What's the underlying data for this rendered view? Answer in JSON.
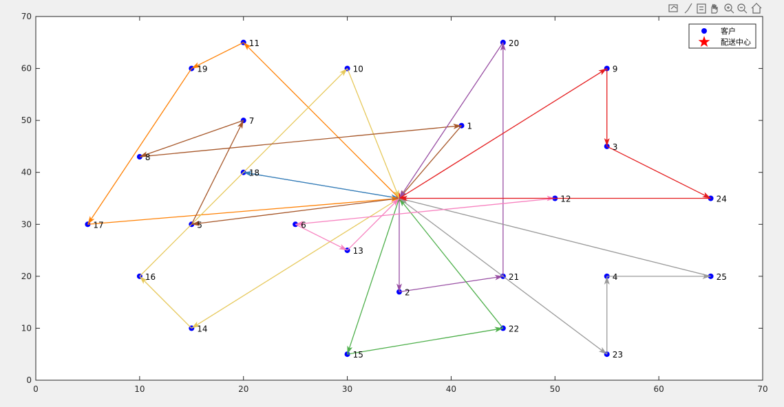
{
  "chart_data": {
    "type": "scatter",
    "series": [
      {
        "name": "客户",
        "color": "#0000ff",
        "marker": "circle",
        "labels": [
          1,
          2,
          3,
          4,
          5,
          6,
          7,
          8,
          9,
          10,
          11,
          12,
          13,
          14,
          15,
          16,
          17,
          18,
          19,
          20,
          21,
          22,
          23,
          24,
          25
        ],
        "x": [
          41,
          35,
          55,
          55,
          15,
          25,
          20,
          10,
          55,
          30,
          20,
          50,
          30,
          15,
          30,
          10,
          5,
          20,
          15,
          45,
          45,
          45,
          55,
          65,
          65
        ],
        "y": [
          49,
          17,
          45,
          20,
          30,
          30,
          50,
          43,
          60,
          60,
          65,
          35,
          25,
          10,
          5,
          20,
          30,
          40,
          60,
          65,
          20,
          10,
          5,
          35,
          20
        ]
      },
      {
        "name": "配送中心",
        "color": "#ff0000",
        "marker": "star",
        "x": [
          35
        ],
        "y": [
          35
        ]
      }
    ],
    "routes": [
      {
        "color": "#377eb8",
        "stops": [
          18
        ]
      },
      {
        "color": "#ff7f00",
        "stops": [
          11,
          19,
          17
        ]
      },
      {
        "color": "#e6c85a",
        "stops": [
          14,
          16,
          10
        ]
      },
      {
        "color": "#a65628",
        "stops": [
          5,
          7,
          8,
          1
        ]
      },
      {
        "color": "#984ea3",
        "stops": [
          2,
          21,
          20
        ]
      },
      {
        "color": "#4daf4a",
        "stops": [
          15,
          22
        ]
      },
      {
        "color": "#999999",
        "stops": [
          23,
          4,
          25
        ]
      },
      {
        "color": "#f781bf",
        "stops": [
          12,
          6,
          13
        ]
      },
      {
        "color": "#e41a1c",
        "stops": [
          9,
          3,
          24
        ]
      }
    ],
    "xlim": [
      0,
      70
    ],
    "ylim": [
      0,
      70
    ],
    "xticks": [
      0,
      10,
      20,
      30,
      40,
      50,
      60,
      70
    ],
    "yticks": [
      0,
      10,
      20,
      30,
      40,
      50,
      60,
      70
    ],
    "legend": "top-right"
  }
}
